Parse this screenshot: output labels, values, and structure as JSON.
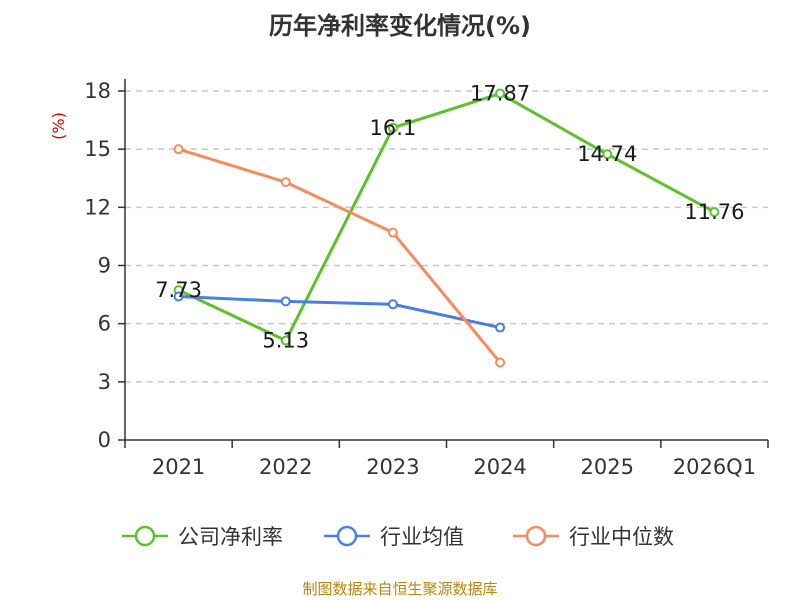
{
  "chart_data": {
    "type": "line",
    "title": "历年净利率变化情况(%)",
    "ylabel": "(%)",
    "categories": [
      "2021",
      "2022",
      "2023",
      "2024",
      "2025",
      "2026Q1"
    ],
    "ylim": [
      0,
      18
    ],
    "yticks": [
      0,
      3,
      6,
      9,
      12,
      15,
      18
    ],
    "grid": true,
    "legend_position": "bottom",
    "series": [
      {
        "name": "公司净利率",
        "color": "#5cc227",
        "values": [
          7.73,
          5.13,
          16.1,
          17.87,
          14.74,
          11.76
        ],
        "labels": [
          "7.73",
          "5.13",
          "16.1",
          "17.87",
          "14.74",
          "11.76"
        ]
      },
      {
        "name": "行业均值",
        "color": "#4a7ee0",
        "values": [
          7.4,
          7.15,
          7.0,
          5.8,
          null,
          null
        ]
      },
      {
        "name": "行业中位数",
        "color": "#f68c5c",
        "values": [
          15.0,
          13.3,
          10.7,
          4.0,
          null,
          null
        ]
      }
    ]
  },
  "footer": "制图数据来自恒生聚源数据库"
}
